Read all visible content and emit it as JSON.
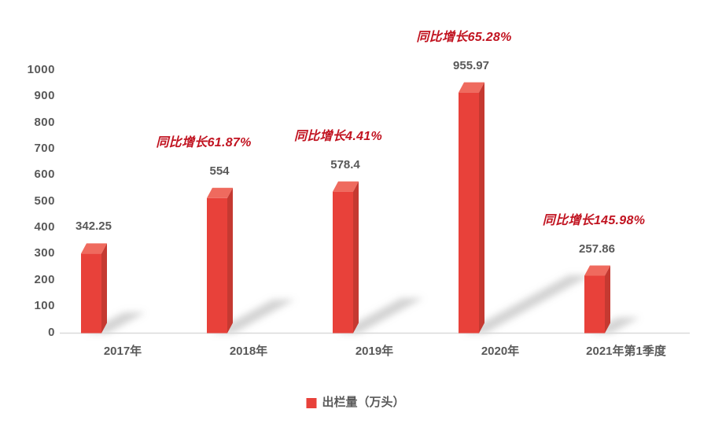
{
  "colors": {
    "bar_front": "#e8413a",
    "bar_top": "#ef6a5e",
    "bar_side": "#c53931",
    "annotation_red": "#c11320",
    "label_gray": "#595959",
    "axis_line": "#d9d9d9",
    "shadow_gray": "#909090",
    "background": "#ffffff"
  },
  "chart_data": {
    "type": "bar",
    "style": "3d-column-with-floor-shadow",
    "title": "",
    "xlabel": "",
    "ylabel": "",
    "categories": [
      "2017年",
      "2018年",
      "2019年",
      "2020年",
      "2021年第1季度"
    ],
    "series": [
      {
        "name": "出栏量（万头）",
        "values": [
          342.25,
          554,
          578.4,
          955.97,
          257.86
        ],
        "value_labels": [
          "342.25",
          "554",
          "578.4",
          "955.97",
          "257.86"
        ]
      }
    ],
    "annotations": [
      {
        "category_index": 1,
        "text": "同比增长61.87%"
      },
      {
        "category_index": 2,
        "text": "同比增长4.41%"
      },
      {
        "category_index": 3,
        "text": "同比增长65.28%"
      },
      {
        "category_index": 4,
        "text": "同比增长145.98%"
      }
    ],
    "yticks": [
      "0",
      "100",
      "200",
      "300",
      "400",
      "500",
      "600",
      "700",
      "800",
      "900",
      "1000"
    ],
    "ylim": [
      0,
      1000
    ],
    "grid": false,
    "legend": {
      "position": "bottom",
      "label": "出栏量（万头）"
    }
  }
}
